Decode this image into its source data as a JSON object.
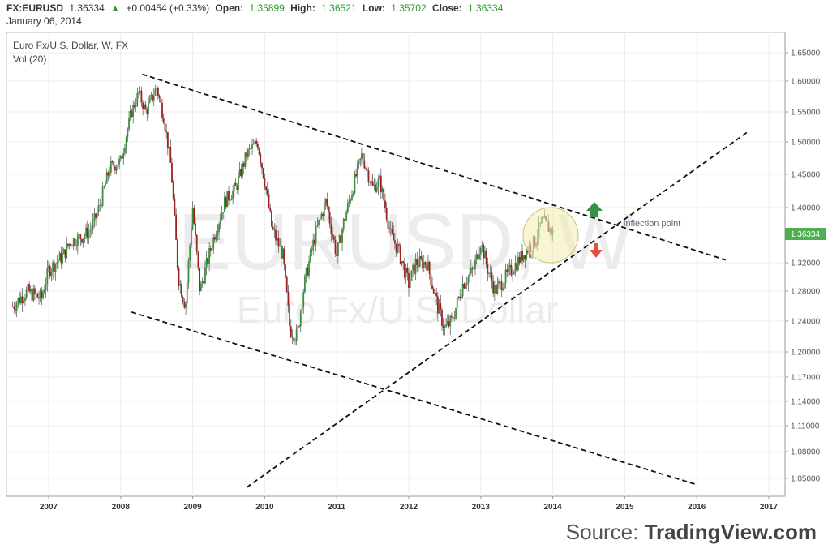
{
  "header": {
    "symbol": "FX:EURUSD",
    "last": "1.36334",
    "change": "+0.00454 (+0.33%)",
    "open_label": "Open:",
    "open": "1.35899",
    "high_label": "High:",
    "high": "1.36521",
    "low_label": "Low:",
    "low": "1.35702",
    "close_label": "Close:",
    "close": "1.36334",
    "date": "January 06, 2014"
  },
  "legend": {
    "instrument": "Euro Fx/U.S. Dollar, W, FX",
    "volume": "Vol (20)"
  },
  "watermark": {
    "ticker": "EURUSD, W",
    "name": "Euro Fx/U.S. Dollar"
  },
  "annotation": "inflection point",
  "source": {
    "prefix": "Source: ",
    "brand": "TradingView.com"
  },
  "colors": {
    "up": "#3c8f3c",
    "down": "#a02020",
    "price_label_bg": "#4caf50",
    "circle_fill": "#f0ecb0",
    "arrow_up": "#3a8f4a",
    "arrow_down": "#e05040"
  },
  "chart_data": {
    "type": "candlestick",
    "title": "Euro Fx/U.S. Dollar, W, FX",
    "last_price": 1.36334,
    "x_ticks": [
      "2007",
      "2008",
      "2009",
      "2010",
      "2011",
      "2012",
      "2013",
      "2014",
      "2015",
      "2016",
      "2017"
    ],
    "y_ticks": [
      "1.65000",
      "1.60000",
      "1.55000",
      "1.50000",
      "1.45000",
      "1.40000",
      "1.32000",
      "1.28000",
      "1.24000",
      "1.20000",
      "1.17000",
      "1.14000",
      "1.11000",
      "1.08000",
      "1.05000"
    ],
    "y_tick_values": [
      1.65,
      1.6,
      1.55,
      1.5,
      1.45,
      1.4,
      1.32,
      1.28,
      1.24,
      1.2,
      1.17,
      1.14,
      1.11,
      1.08,
      1.05
    ],
    "x_range": [
      2006.5,
      2017.2
    ],
    "price_path": [
      [
        2006.5,
        1.26
      ],
      [
        2006.7,
        1.28
      ],
      [
        2006.9,
        1.27
      ],
      [
        2007.0,
        1.31
      ],
      [
        2007.2,
        1.33
      ],
      [
        2007.3,
        1.35
      ],
      [
        2007.5,
        1.36
      ],
      [
        2007.6,
        1.37
      ],
      [
        2007.7,
        1.4
      ],
      [
        2007.85,
        1.46
      ],
      [
        2008.0,
        1.47
      ],
      [
        2008.15,
        1.55
      ],
      [
        2008.25,
        1.58
      ],
      [
        2008.35,
        1.55
      ],
      [
        2008.5,
        1.59
      ],
      [
        2008.6,
        1.54
      ],
      [
        2008.7,
        1.46
      ],
      [
        2008.8,
        1.3
      ],
      [
        2008.9,
        1.26
      ],
      [
        2009.0,
        1.4
      ],
      [
        2009.1,
        1.28
      ],
      [
        2009.2,
        1.32
      ],
      [
        2009.3,
        1.36
      ],
      [
        2009.45,
        1.41
      ],
      [
        2009.6,
        1.43
      ],
      [
        2009.75,
        1.48
      ],
      [
        2009.9,
        1.5
      ],
      [
        2010.0,
        1.44
      ],
      [
        2010.1,
        1.37
      ],
      [
        2010.25,
        1.33
      ],
      [
        2010.35,
        1.23
      ],
      [
        2010.45,
        1.22
      ],
      [
        2010.55,
        1.29
      ],
      [
        2010.7,
        1.36
      ],
      [
        2010.85,
        1.41
      ],
      [
        2011.0,
        1.33
      ],
      [
        2011.1,
        1.38
      ],
      [
        2011.25,
        1.44
      ],
      [
        2011.35,
        1.48
      ],
      [
        2011.5,
        1.43
      ],
      [
        2011.6,
        1.44
      ],
      [
        2011.75,
        1.36
      ],
      [
        2011.85,
        1.34
      ],
      [
        2012.0,
        1.29
      ],
      [
        2012.1,
        1.32
      ],
      [
        2012.25,
        1.32
      ],
      [
        2012.4,
        1.26
      ],
      [
        2012.5,
        1.23
      ],
      [
        2012.6,
        1.24
      ],
      [
        2012.75,
        1.29
      ],
      [
        2012.9,
        1.31
      ],
      [
        2013.0,
        1.35
      ],
      [
        2013.1,
        1.31
      ],
      [
        2013.2,
        1.28
      ],
      [
        2013.35,
        1.3
      ],
      [
        2013.5,
        1.32
      ],
      [
        2013.65,
        1.34
      ],
      [
        2013.75,
        1.35
      ],
      [
        2013.85,
        1.38
      ],
      [
        2013.95,
        1.37
      ],
      [
        2014.0,
        1.363
      ]
    ],
    "trendlines": [
      {
        "name": "upper",
        "from": [
          2008.3,
          1.612
        ],
        "to": [
          2016.4,
          1.324
        ]
      },
      {
        "name": "lower",
        "from": [
          2008.15,
          1.252
        ],
        "to": [
          2016.0,
          1.043
        ]
      },
      {
        "name": "support",
        "from": [
          2009.75,
          1.04
        ],
        "to": [
          2016.7,
          1.516
        ]
      }
    ],
    "annotations": [
      {
        "text": "inflection point",
        "x": 2014.5,
        "y": 1.37
      }
    ]
  }
}
